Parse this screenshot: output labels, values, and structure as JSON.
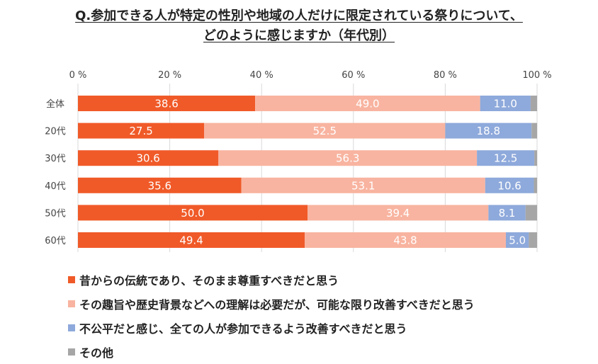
{
  "chart_data": {
    "type": "bar",
    "orientation": "horizontal",
    "stacked": true,
    "title_line1": "Q.参加できる人が特定の性別や地域の人だけに限定されている祭りについて、",
    "title_line2": "どのように感じますか（年代別）",
    "categories": [
      "全体",
      "20代",
      "30代",
      "40代",
      "50代",
      "60代"
    ],
    "xlim": [
      0,
      100
    ],
    "xticks": [
      "0 %",
      "20 %",
      "40 %",
      "60 %",
      "80 %",
      "100 %"
    ],
    "tick_values": [
      0,
      20,
      40,
      60,
      80,
      100
    ],
    "series": [
      {
        "name": "昔からの伝統であり、そのまま尊重すべきだと思う",
        "color": "#F05A28",
        "values": [
          38.6,
          27.5,
          30.6,
          35.6,
          50.0,
          49.4
        ],
        "labels": [
          "38.6",
          "27.5",
          "30.6",
          "35.6",
          "50.0",
          "49.4"
        ]
      },
      {
        "name": "その趣旨や歴史背景などへの理解は必要だが、可能な限り改善すべきだと思う",
        "color": "#F8B4A0",
        "values": [
          49.0,
          52.5,
          56.3,
          53.1,
          39.4,
          43.8
        ],
        "labels": [
          "49.0",
          "52.5",
          "56.3",
          "53.1",
          "39.4",
          "43.8"
        ]
      },
      {
        "name": "不公平だと感じ、全ての人が参加できるよう改善すべきだと思う",
        "color": "#8EA9DB",
        "values": [
          11.0,
          18.8,
          12.5,
          10.6,
          8.1,
          5.0
        ],
        "labels": [
          "11.0",
          "18.8",
          "12.5",
          "10.6",
          "8.1",
          "5.0"
        ]
      },
      {
        "name": "その他",
        "color": "#A6A6A6",
        "values": [
          1.4,
          1.2,
          0.6,
          0.7,
          2.5,
          1.8
        ],
        "labels": [
          "",
          "",
          "",
          "",
          "",
          ""
        ]
      }
    ],
    "legend_position": "bottom-left",
    "grid": true
  }
}
